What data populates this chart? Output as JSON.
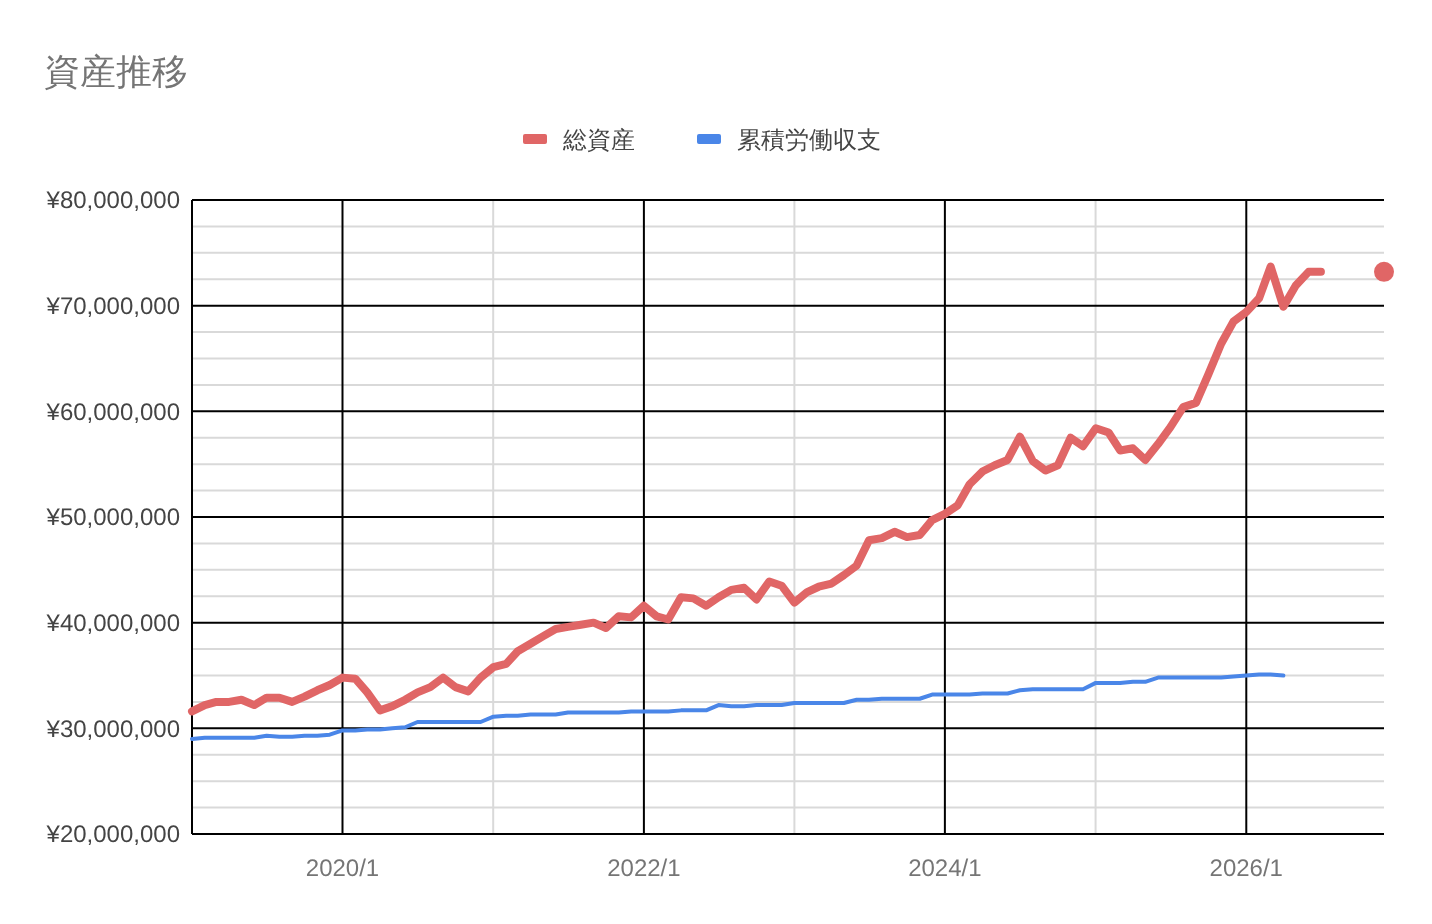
{
  "chart_data": {
    "type": "line",
    "title": "資産推移",
    "x": [
      "2019-01",
      "2019-02",
      "2019-03",
      "2019-04",
      "2019-05",
      "2019-06",
      "2019-07",
      "2019-08",
      "2019-09",
      "2019-10",
      "2019-11",
      "2019-12",
      "2020-01",
      "2020-02",
      "2020-03",
      "2020-04",
      "2020-05",
      "2020-06",
      "2020-07",
      "2020-08",
      "2020-09",
      "2020-10",
      "2020-11",
      "2020-12",
      "2021-01",
      "2021-02",
      "2021-03",
      "2021-04",
      "2021-05",
      "2021-06",
      "2021-07",
      "2021-08",
      "2021-09",
      "2021-10",
      "2021-11",
      "2021-12",
      "2022-01",
      "2022-02",
      "2022-03",
      "2022-04",
      "2022-05",
      "2022-06",
      "2022-07",
      "2022-08",
      "2022-09",
      "2022-10",
      "2022-11",
      "2022-12",
      "2023-01",
      "2023-02",
      "2023-03",
      "2023-04",
      "2023-05",
      "2023-06",
      "2023-07",
      "2023-08",
      "2023-09",
      "2023-10",
      "2023-11",
      "2023-12",
      "2024-01",
      "2024-02",
      "2024-03",
      "2024-04",
      "2024-05",
      "2024-06",
      "2024-07",
      "2024-08",
      "2024-09",
      "2024-10",
      "2024-11",
      "2024-12",
      "2025-01",
      "2025-02",
      "2025-03",
      "2025-04",
      "2025-05",
      "2025-06",
      "2025-07",
      "2025-08",
      "2025-09",
      "2025-10",
      "2025-11",
      "2025-12",
      "2026-01",
      "2026-02",
      "2026-03",
      "2026-04",
      "2026-05",
      "2026-06",
      "2026-07",
      "2026-08",
      "2026-09",
      "2026-10",
      "2026-11",
      "2026-12"
    ],
    "series": [
      {
        "name": "総資産",
        "color": "#e06666",
        "values": [
          31600000,
          32200000,
          32500000,
          32500000,
          32700000,
          32200000,
          32900000,
          32900000,
          32500000,
          33000000,
          33600000,
          34100000,
          34800000,
          34700000,
          33400000,
          31700000,
          32100000,
          32700000,
          33400000,
          33900000,
          34800000,
          33900000,
          33500000,
          34800000,
          35800000,
          36100000,
          37300000,
          38000000,
          38700000,
          39400000,
          39600000,
          39800000,
          40000000,
          39500000,
          40600000,
          40500000,
          41600000,
          40600000,
          40300000,
          42400000,
          42300000,
          41600000,
          42400000,
          43100000,
          43300000,
          42200000,
          43900000,
          43500000,
          41900000,
          42900000,
          43400000,
          43700000,
          44500000,
          45400000,
          47800000,
          48000000,
          48600000,
          48100000,
          48300000,
          49700000,
          50300000,
          51100000,
          53100000,
          54300000,
          54900000,
          55400000,
          57600000,
          55300000,
          54400000,
          54900000,
          57500000,
          56700000,
          58400000,
          58000000,
          56300000,
          56500000,
          55400000,
          56900000,
          58500000,
          60400000,
          60800000,
          63500000,
          66400000,
          68500000,
          69400000,
          70700000,
          73700000,
          69900000,
          71900000,
          73200000,
          73200000,
          null,
          null,
          null,
          null,
          73200000
        ]
      },
      {
        "name": "累積労働収支",
        "color": "#4a86e8",
        "values": [
          29000000,
          29100000,
          29100000,
          29100000,
          29100000,
          29100000,
          29300000,
          29200000,
          29200000,
          29300000,
          29300000,
          29400000,
          29800000,
          29800000,
          29900000,
          29900000,
          30000000,
          30100000,
          30600000,
          30600000,
          30600000,
          30600000,
          30600000,
          30600000,
          31100000,
          31200000,
          31200000,
          31300000,
          31300000,
          31300000,
          31500000,
          31500000,
          31500000,
          31500000,
          31500000,
          31600000,
          31600000,
          31600000,
          31600000,
          31700000,
          31700000,
          31700000,
          32200000,
          32100000,
          32100000,
          32200000,
          32200000,
          32200000,
          32400000,
          32400000,
          32400000,
          32400000,
          32400000,
          32700000,
          32700000,
          32800000,
          32800000,
          32800000,
          32800000,
          33200000,
          33200000,
          33200000,
          33200000,
          33300000,
          33300000,
          33300000,
          33600000,
          33700000,
          33700000,
          33700000,
          33700000,
          33700000,
          34300000,
          34300000,
          34300000,
          34400000,
          34400000,
          34800000,
          34800000,
          34800000,
          34800000,
          34800000,
          34800000,
          34900000,
          35000000,
          35100000,
          35100000,
          35000000,
          null,
          null,
          null,
          null,
          null,
          null,
          null,
          null
        ]
      }
    ],
    "xlim": [
      "2019-01",
      "2026-12"
    ],
    "xticks": [
      {
        "value": "2020-01",
        "label": "2020/1"
      },
      {
        "value": "2022-01",
        "label": "2022/1"
      },
      {
        "value": "2024-01",
        "label": "2024/1"
      },
      {
        "value": "2026-01",
        "label": "2026/1"
      }
    ],
    "ylim": [
      20000000,
      80000000
    ],
    "yticks": [
      {
        "value": 20000000,
        "label": "¥20,000,000"
      },
      {
        "value": 30000000,
        "label": "¥30,000,000"
      },
      {
        "value": 40000000,
        "label": "¥40,000,000"
      },
      {
        "value": 50000000,
        "label": "¥50,000,000"
      },
      {
        "value": 60000000,
        "label": "¥60,000,000"
      },
      {
        "value": 70000000,
        "label": "¥70,000,000"
      },
      {
        "value": 80000000,
        "label": "¥80,000,000"
      }
    ],
    "grid": true,
    "legend": "top",
    "marker": "none",
    "line_style": "solid"
  }
}
